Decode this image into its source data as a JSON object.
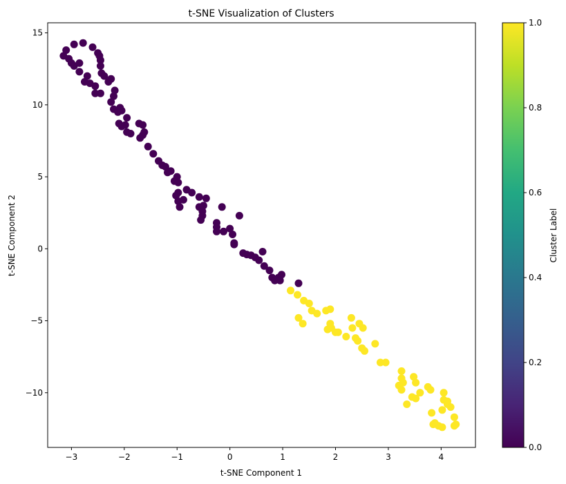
{
  "chart_data": {
    "type": "scatter",
    "title": "t-SNE Visualization of Clusters",
    "xlabel": "t-SNE Component 1",
    "ylabel": "t-SNE Component 2",
    "xlim": [
      -3.45,
      4.65
    ],
    "ylim": [
      -13.8,
      15.7
    ],
    "xticks": [
      -3,
      -2,
      -1,
      0,
      1,
      2,
      3,
      4
    ],
    "yticks": [
      -10,
      -5,
      0,
      5,
      10,
      15
    ],
    "grid": false,
    "colormap": "viridis",
    "colorbar": {
      "label": "Cluster Label",
      "range": [
        0.0,
        1.0
      ],
      "ticks": [
        "0.0",
        "0.2",
        "0.4",
        "0.6",
        "0.8",
        "1.0"
      ]
    },
    "colors": {
      "cluster_0": "#440154",
      "cluster_1": "#fde725"
    },
    "series": [
      {
        "label_value": 0,
        "points": [
          [
            -3.15,
            13.4
          ],
          [
            -3.1,
            13.8
          ],
          [
            -3.05,
            13.2
          ],
          [
            -3.0,
            12.9
          ],
          [
            -2.95,
            12.7
          ],
          [
            -2.95,
            14.2
          ],
          [
            -2.85,
            12.9
          ],
          [
            -2.85,
            12.3
          ],
          [
            -2.78,
            14.3
          ],
          [
            -2.75,
            11.6
          ],
          [
            -2.7,
            12.0
          ],
          [
            -2.65,
            11.5
          ],
          [
            -2.6,
            14.0
          ],
          [
            -2.55,
            11.3
          ],
          [
            -2.55,
            10.8
          ],
          [
            -2.5,
            13.6
          ],
          [
            -2.47,
            13.4
          ],
          [
            -2.45,
            13.1
          ],
          [
            -2.45,
            12.7
          ],
          [
            -2.43,
            12.2
          ],
          [
            -2.45,
            10.8
          ],
          [
            -2.38,
            12.0
          ],
          [
            -2.3,
            11.6
          ],
          [
            -2.25,
            11.8
          ],
          [
            -2.25,
            10.2
          ],
          [
            -2.2,
            10.6
          ],
          [
            -2.2,
            9.7
          ],
          [
            -2.18,
            11.0
          ],
          [
            -2.12,
            9.5
          ],
          [
            -2.08,
            9.8
          ],
          [
            -2.05,
            9.6
          ],
          [
            -2.1,
            8.7
          ],
          [
            -2.05,
            8.5
          ],
          [
            -1.98,
            8.6
          ],
          [
            -1.95,
            8.1
          ],
          [
            -1.95,
            9.1
          ],
          [
            -1.88,
            8.0
          ],
          [
            -1.72,
            8.7
          ],
          [
            -1.65,
            8.6
          ],
          [
            -1.7,
            7.7
          ],
          [
            -1.65,
            7.9
          ],
          [
            -1.62,
            8.1
          ],
          [
            -1.55,
            7.1
          ],
          [
            -1.45,
            6.6
          ],
          [
            -1.35,
            6.1
          ],
          [
            -1.28,
            5.8
          ],
          [
            -1.22,
            5.7
          ],
          [
            -1.18,
            5.3
          ],
          [
            -1.12,
            5.4
          ],
          [
            -1.05,
            4.7
          ],
          [
            -1.0,
            5.0
          ],
          [
            -0.98,
            4.6
          ],
          [
            -0.98,
            3.9
          ],
          [
            -1.02,
            3.7
          ],
          [
            -0.98,
            3.3
          ],
          [
            -0.95,
            2.9
          ],
          [
            -0.88,
            3.4
          ],
          [
            -0.82,
            4.1
          ],
          [
            -0.72,
            3.9
          ],
          [
            -0.58,
            3.6
          ],
          [
            -0.58,
            2.9
          ],
          [
            -0.52,
            2.6
          ],
          [
            -0.52,
            2.3
          ],
          [
            -0.5,
            3.0
          ],
          [
            -0.45,
            3.5
          ],
          [
            -0.55,
            2.0
          ],
          [
            -0.25,
            1.8
          ],
          [
            -0.25,
            1.5
          ],
          [
            -0.25,
            1.2
          ],
          [
            -0.12,
            1.2
          ],
          [
            -0.15,
            2.9
          ],
          [
            0.0,
            1.4
          ],
          [
            0.05,
            1.0
          ],
          [
            0.08,
            0.4
          ],
          [
            0.08,
            0.3
          ],
          [
            0.18,
            2.3
          ],
          [
            0.25,
            -0.3
          ],
          [
            0.32,
            -0.4
          ],
          [
            0.4,
            -0.45
          ],
          [
            0.48,
            -0.6
          ],
          [
            0.55,
            -0.8
          ],
          [
            0.62,
            -0.2
          ],
          [
            0.65,
            -1.2
          ],
          [
            0.75,
            -1.5
          ],
          [
            0.8,
            -2.0
          ],
          [
            0.85,
            -2.2
          ],
          [
            0.92,
            -2.0
          ],
          [
            0.98,
            -1.8
          ],
          [
            1.3,
            -2.4
          ],
          [
            0.95,
            -2.2
          ]
        ]
      },
      {
        "label_value": 1,
        "points": [
          [
            1.15,
            -2.9
          ],
          [
            1.28,
            -3.2
          ],
          [
            1.4,
            -3.6
          ],
          [
            1.5,
            -3.8
          ],
          [
            1.55,
            -4.3
          ],
          [
            1.65,
            -4.5
          ],
          [
            1.82,
            -4.3
          ],
          [
            1.9,
            -4.2
          ],
          [
            1.3,
            -4.8
          ],
          [
            1.38,
            -5.2
          ],
          [
            1.9,
            -5.2
          ],
          [
            1.92,
            -5.5
          ],
          [
            1.85,
            -5.6
          ],
          [
            2.0,
            -5.8
          ],
          [
            2.05,
            -5.8
          ],
          [
            2.2,
            -6.1
          ],
          [
            2.3,
            -4.8
          ],
          [
            2.32,
            -5.5
          ],
          [
            2.45,
            -5.2
          ],
          [
            2.52,
            -5.5
          ],
          [
            2.38,
            -6.2
          ],
          [
            2.42,
            -6.4
          ],
          [
            2.5,
            -6.9
          ],
          [
            2.55,
            -7.1
          ],
          [
            2.75,
            -6.6
          ],
          [
            2.85,
            -7.9
          ],
          [
            2.95,
            -7.9
          ],
          [
            3.25,
            -8.5
          ],
          [
            3.25,
            -9.0
          ],
          [
            3.28,
            -9.3
          ],
          [
            3.2,
            -9.5
          ],
          [
            3.25,
            -9.8
          ],
          [
            3.35,
            -10.8
          ],
          [
            3.45,
            -10.3
          ],
          [
            3.48,
            -8.9
          ],
          [
            3.52,
            -9.3
          ],
          [
            3.52,
            -10.4
          ],
          [
            3.6,
            -10.0
          ],
          [
            3.75,
            -9.6
          ],
          [
            3.8,
            -9.8
          ],
          [
            3.82,
            -11.4
          ],
          [
            3.85,
            -12.2
          ],
          [
            3.88,
            -12.1
          ],
          [
            3.95,
            -12.3
          ],
          [
            4.02,
            -12.4
          ],
          [
            4.05,
            -10.0
          ],
          [
            4.05,
            -10.5
          ],
          [
            4.02,
            -11.2
          ],
          [
            4.12,
            -10.6
          ],
          [
            4.12,
            -10.8
          ],
          [
            4.18,
            -11.0
          ],
          [
            4.25,
            -11.7
          ],
          [
            4.25,
            -12.3
          ],
          [
            4.28,
            -12.2
          ]
        ]
      }
    ]
  }
}
